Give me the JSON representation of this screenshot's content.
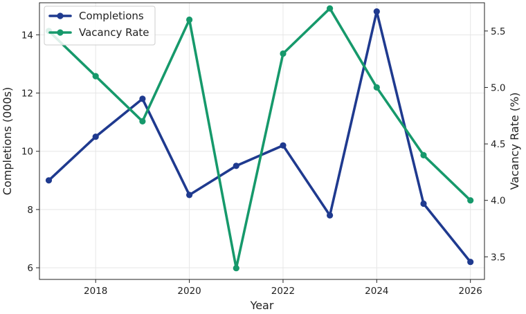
{
  "chart_data": {
    "type": "line",
    "title": "",
    "xlabel": "Year",
    "ylabel_left": "Completions (000s)",
    "ylabel_right": "Vacancy Rate (%)",
    "x": [
      2017,
      2018,
      2019,
      2020,
      2021,
      2022,
      2023,
      2024,
      2025,
      2026
    ],
    "xlim": [
      2016.8,
      2026.3
    ],
    "x_ticks": [
      2018,
      2020,
      2022,
      2024,
      2026
    ],
    "ylim_left": [
      5.6,
      15.1
    ],
    "ylim_right": [
      3.3,
      5.75
    ],
    "y_ticks_left": [
      6,
      8,
      10,
      12,
      14
    ],
    "y_ticks_right": [
      3.5,
      4.0,
      4.5,
      5.0,
      5.5
    ],
    "y_ticks_right_labels": [
      "3.5",
      "4.0",
      "4.5",
      "5.0",
      "5.5"
    ],
    "grid": true,
    "legend_position": "top-left",
    "series": [
      {
        "name": "Completions",
        "axis": "left",
        "color": "#1f3a8f",
        "values": [
          9.0,
          10.5,
          11.8,
          8.5,
          9.5,
          10.2,
          7.8,
          14.8,
          8.2,
          6.2
        ]
      },
      {
        "name": "Vacancy Rate",
        "axis": "right",
        "color": "#16996b",
        "values": [
          5.5,
          5.1,
          4.7,
          5.6,
          3.4,
          5.3,
          5.7,
          5.0,
          4.4,
          4.0
        ]
      }
    ]
  }
}
